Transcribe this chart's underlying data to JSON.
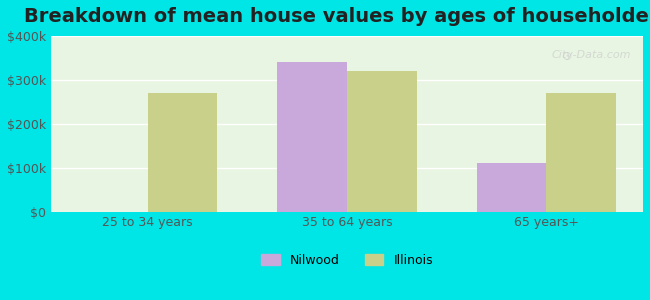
{
  "categories": [
    "25 to 34 years",
    "35 to 64 years",
    "65 years+"
  ],
  "nilwood": [
    0,
    340000,
    110000
  ],
  "illinois": [
    270000,
    320000,
    270000
  ],
  "nilwood_color": "#c9a8dc",
  "illinois_color": "#c8d08a",
  "title": "Breakdown of mean house values by ages of householders",
  "title_fontsize": 14,
  "ylabel": "",
  "ylim": [
    0,
    400000
  ],
  "yticks": [
    0,
    100000,
    200000,
    300000,
    400000
  ],
  "ytick_labels": [
    "$0",
    "$100k",
    "$200k",
    "$300k",
    "$400k"
  ],
  "legend_labels": [
    "Nilwood",
    "Illinois"
  ],
  "outer_bg": "#00e5e5",
  "inner_bg_top": "#e8f5e0",
  "inner_bg_bottom": "#f0faf0",
  "bar_width": 0.35,
  "grid_color": "#ffffff",
  "tick_label_fontsize": 9,
  "legend_fontsize": 9,
  "watermark": "City-Data.com"
}
